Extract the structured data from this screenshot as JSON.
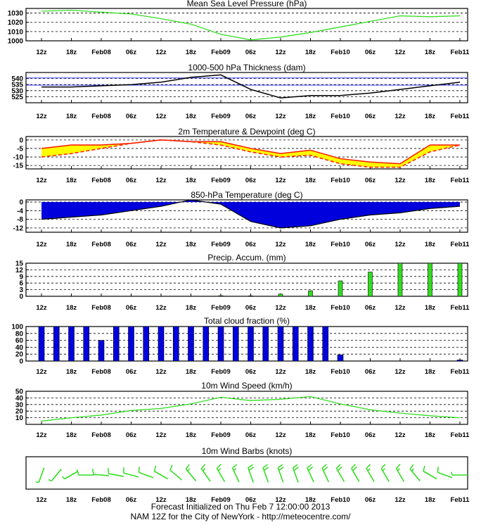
{
  "colors": {
    "background": "#ffffff",
    "frame": "#000000",
    "green": "#33dd22",
    "blue_fill": "#0000dd",
    "yellow_fill": "#ffff00",
    "red_line": "#ff2200",
    "thickness_ref_line": "#4444ff",
    "black_line": "#000000"
  },
  "x_tick_labels": [
    "12z",
    "18z",
    "Feb08",
    "06z",
    "12z",
    "18z",
    "Feb09",
    "06z",
    "12z",
    "18z",
    "Feb10",
    "06z",
    "12z",
    "18z",
    "Feb11"
  ],
  "footer": {
    "line1": "Forecast Initialized on Thu Feb  7 12:00:00 2013",
    "line2": "NAM 12Z for the City of NewYork - http://meteocentre.com/"
  },
  "chart_data": [
    {
      "id": "pressure",
      "type": "line",
      "title": "Mean Sea Level Pressure (hPa)",
      "x_hours": [
        0,
        6,
        12,
        18,
        24,
        30,
        36,
        42,
        48,
        54,
        60,
        66,
        72,
        78,
        84
      ],
      "ylim": [
        1000,
        1035
      ],
      "y_ticks": [
        1000,
        1010,
        1020,
        1030
      ],
      "grid": "dashed",
      "series": [
        {
          "color": "green",
          "values": [
            1032,
            1033,
            1031,
            1029,
            1024,
            1018,
            1007,
            1001,
            1004,
            1009,
            1015,
            1021,
            1027,
            1026,
            1027
          ]
        }
      ]
    },
    {
      "id": "thickness",
      "type": "line",
      "title": "1000-500 hPa Thickness (dam)",
      "x_hours": [
        0,
        6,
        12,
        18,
        24,
        30,
        36,
        42,
        48,
        54,
        60,
        66,
        72,
        78,
        84
      ],
      "ylim": [
        520,
        545
      ],
      "y_ticks": [
        525,
        530,
        535,
        540
      ],
      "grid": "dashed",
      "reference_lines": [
        534.5,
        540.5
      ],
      "series": [
        {
          "color": "black",
          "values": [
            533,
            533,
            534,
            535,
            537,
            541,
            543,
            531,
            524,
            526,
            526,
            528,
            531,
            534,
            537
          ]
        }
      ]
    },
    {
      "id": "temp_dew",
      "type": "area",
      "title": "2m Temperature & Dewpoint (deg C)",
      "x_hours": [
        0,
        6,
        12,
        18,
        24,
        30,
        36,
        42,
        48,
        54,
        60,
        66,
        72,
        78,
        84
      ],
      "ylim": [
        -17,
        2
      ],
      "y_ticks": [
        -15,
        -10,
        -5,
        0
      ],
      "grid": "dashed",
      "series": [
        {
          "name": "Temperature",
          "color": "red_line",
          "values": [
            -5,
            -3,
            -3,
            -2,
            0,
            -1,
            -1,
            -5,
            -8,
            -6,
            -11,
            -13,
            -14,
            -3,
            -3
          ]
        },
        {
          "name": "Dewpoint",
          "color": "red_line",
          "dashed": true,
          "values": [
            -10,
            -8,
            -5,
            -2,
            0,
            -1,
            -3,
            -7,
            -10,
            -9,
            -14,
            -16,
            -16,
            -7,
            -3
          ]
        }
      ]
    },
    {
      "id": "t850",
      "type": "area",
      "title": "850-hPa Temperature (deg C)",
      "x_hours": [
        0,
        6,
        12,
        18,
        24,
        30,
        36,
        42,
        48,
        54,
        60,
        66,
        72,
        78,
        84
      ],
      "ylim": [
        -14,
        1
      ],
      "y_ticks": [
        -12,
        -8,
        -4,
        0
      ],
      "grid": "dashed",
      "series": [
        {
          "color": "blue_fill",
          "values": [
            -8,
            -7,
            -6,
            -4,
            -2,
            1,
            -1,
            -9,
            -12,
            -11,
            -8,
            -6,
            -5,
            -3,
            -2
          ]
        }
      ]
    },
    {
      "id": "precip",
      "type": "bar",
      "title": "Precip. Accum. (mm)",
      "x_hours": [
        0,
        3,
        6,
        9,
        12,
        15,
        18,
        21,
        24,
        27,
        30,
        33,
        36,
        39,
        42,
        45,
        48,
        51,
        54,
        57,
        60,
        63,
        66,
        69,
        72,
        75,
        78,
        81,
        84
      ],
      "ylim": [
        0,
        15
      ],
      "y_ticks": [
        0,
        3,
        6,
        9,
        12,
        15
      ],
      "grid": "dashed",
      "series": [
        {
          "color": "green",
          "values": [
            0,
            0,
            0,
            0,
            0,
            0,
            0,
            0,
            0,
            0,
            0,
            0,
            0.3,
            0,
            0.2,
            0,
            1,
            0,
            2.5,
            0,
            7,
            0,
            11,
            0,
            15,
            0,
            15,
            0,
            15
          ]
        }
      ]
    },
    {
      "id": "cloud",
      "type": "bar",
      "title": "Total cloud fraction (%)",
      "x_hours": [
        0,
        3,
        6,
        9,
        12,
        15,
        18,
        21,
        24,
        27,
        30,
        33,
        36,
        39,
        42,
        45,
        48,
        51,
        54,
        57,
        60,
        63,
        66,
        69,
        72,
        75,
        78,
        81,
        84
      ],
      "ylim": [
        0,
        100
      ],
      "y_ticks": [
        0,
        20,
        40,
        60,
        80,
        100
      ],
      "grid": "dashed",
      "series": [
        {
          "color": "blue_fill",
          "values": [
            100,
            100,
            100,
            100,
            60,
            100,
            100,
            100,
            100,
            100,
            100,
            100,
            100,
            100,
            100,
            100,
            100,
            100,
            100,
            100,
            18,
            0,
            0,
            0,
            0,
            0,
            0,
            0,
            3
          ]
        }
      ]
    },
    {
      "id": "wind",
      "type": "line",
      "title": "10m Wind Speed (km/h)",
      "x_hours": [
        0,
        6,
        12,
        18,
        24,
        30,
        36,
        42,
        48,
        54,
        60,
        66,
        72,
        78,
        84
      ],
      "ylim": [
        0,
        50
      ],
      "y_ticks": [
        10,
        20,
        30,
        40,
        50
      ],
      "grid": "dashed",
      "series": [
        {
          "color": "green",
          "values": [
            5,
            10,
            14,
            21,
            24,
            31,
            41,
            36,
            38,
            42,
            31,
            22,
            17,
            13,
            10
          ]
        }
      ]
    },
    {
      "id": "barbs",
      "type": "scatter",
      "title": "10m Wind Barbs  (knots)",
      "x_hours": [
        0,
        3,
        6,
        9,
        12,
        15,
        18,
        21,
        24,
        27,
        30,
        33,
        36,
        39,
        42,
        45,
        48,
        51,
        54,
        57,
        60,
        63,
        66,
        69,
        72,
        75,
        78,
        81,
        84
      ],
      "series": [
        {
          "color": "green",
          "speed_kt": [
            5,
            5,
            5,
            10,
            10,
            10,
            10,
            10,
            10,
            10,
            15,
            15,
            15,
            15,
            20,
            20,
            20,
            20,
            20,
            20,
            20,
            20,
            15,
            15,
            15,
            15,
            10,
            10,
            5
          ],
          "direction_deg": [
            200,
            220,
            240,
            270,
            275,
            280,
            285,
            290,
            300,
            310,
            320,
            325,
            330,
            335,
            340,
            340,
            340,
            340,
            335,
            335,
            330,
            330,
            330,
            330,
            330,
            320,
            300,
            290,
            270
          ]
        }
      ]
    }
  ]
}
